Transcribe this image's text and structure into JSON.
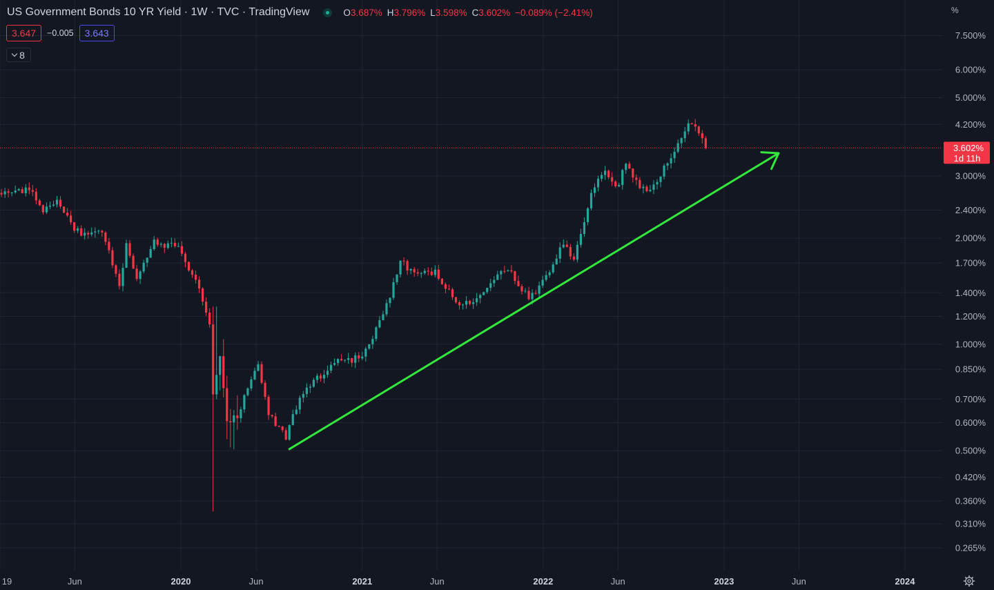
{
  "header": {
    "symbol_title": "US Government Bonds 10 YR Yield · 1W · TVC · TradingView",
    "ohlc": [
      {
        "key": "O",
        "value": "3.687%"
      },
      {
        "key": "H",
        "value": "3.796%"
      },
      {
        "key": "L",
        "value": "3.598%"
      },
      {
        "key": "C",
        "value": "3.602%"
      }
    ],
    "change": "−0.089% (−2.41%)",
    "sell_price": "3.647",
    "spread": "−0.005",
    "buy_price": "3.643",
    "indicators_count": "8"
  },
  "colors": {
    "background": "#131722",
    "grid": "#232632",
    "up": "#26a69a",
    "down": "#f23645",
    "trendline": "#32e83c",
    "buy_border": "#4c4cf0"
  },
  "chart_data": {
    "type": "candlestick",
    "title": "US Government Bonds 10 YR Yield · 1W · TVC · TradingView",
    "y_scale": "log",
    "y_unit": "%",
    "ylim": [
      0.24,
      9.3
    ],
    "y_ticks": [
      "7.500%",
      "6.000%",
      "5.000%",
      "4.200%",
      "3.000%",
      "2.400%",
      "2.000%",
      "1.700%",
      "1.400%",
      "1.200%",
      "1.000%",
      "0.850%",
      "0.700%",
      "0.600%",
      "0.500%",
      "0.420%",
      "0.360%",
      "0.310%",
      "0.265%"
    ],
    "x_ticks": [
      "19",
      "Jun",
      "2020",
      "Jun",
      "2021",
      "Jun",
      "2022",
      "Jun",
      "2023",
      "Jun",
      "2024"
    ],
    "bold_x_ticks": [
      "2020",
      "2021",
      "2022",
      "2023",
      "2024"
    ],
    "x_range": [
      "2019-01",
      "2024-07"
    ],
    "candles_start": "2019-01-04",
    "candles_end": "2022-11-25",
    "last_price_label": "3.602%",
    "countdown_label": "1d 11h",
    "unit_label": "%",
    "price_path": [
      {
        "date": "2019-01-04",
        "value": 2.66
      },
      {
        "date": "2019-03-01",
        "value": 2.73
      },
      {
        "date": "2019-03-29",
        "value": 2.41
      },
      {
        "date": "2019-04-26",
        "value": 2.56
      },
      {
        "date": "2019-05-31",
        "value": 2.13
      },
      {
        "date": "2019-06-28",
        "value": 2.02
      },
      {
        "date": "2019-07-26",
        "value": 2.07
      },
      {
        "date": "2019-08-30",
        "value": 1.5
      },
      {
        "date": "2019-09-13",
        "value": 1.9
      },
      {
        "date": "2019-10-04",
        "value": 1.53
      },
      {
        "date": "2019-11-08",
        "value": 1.94
      },
      {
        "date": "2019-12-27",
        "value": 1.88
      },
      {
        "date": "2020-01-31",
        "value": 1.51
      },
      {
        "date": "2020-02-28",
        "value": 1.15
      },
      {
        "date": "2020-03-06",
        "value": 0.71
      },
      {
        "date": "2020-03-20",
        "value": 0.92
      },
      {
        "date": "2020-04-03",
        "value": 0.6
      },
      {
        "date": "2020-04-24",
        "value": 0.63
      },
      {
        "date": "2020-06-05",
        "value": 0.89
      },
      {
        "date": "2020-06-26",
        "value": 0.64
      },
      {
        "date": "2020-07-31",
        "value": 0.54
      },
      {
        "date": "2020-08-28",
        "value": 0.72
      },
      {
        "date": "2020-10-30",
        "value": 0.87
      },
      {
        "date": "2020-11-13",
        "value": 0.89
      },
      {
        "date": "2020-12-31",
        "value": 0.92
      },
      {
        "date": "2021-02-12",
        "value": 1.2
      },
      {
        "date": "2021-03-19",
        "value": 1.72
      },
      {
        "date": "2021-04-16",
        "value": 1.58
      },
      {
        "date": "2021-05-28",
        "value": 1.59
      },
      {
        "date": "2021-07-16",
        "value": 1.29
      },
      {
        "date": "2021-08-06",
        "value": 1.3
      },
      {
        "date": "2021-10-22",
        "value": 1.65
      },
      {
        "date": "2021-12-03",
        "value": 1.34
      },
      {
        "date": "2021-12-31",
        "value": 1.51
      },
      {
        "date": "2022-02-11",
        "value": 1.93
      },
      {
        "date": "2022-03-04",
        "value": 1.73
      },
      {
        "date": "2022-04-08",
        "value": 2.72
      },
      {
        "date": "2022-05-06",
        "value": 3.13
      },
      {
        "date": "2022-05-27",
        "value": 2.74
      },
      {
        "date": "2022-06-17",
        "value": 3.23
      },
      {
        "date": "2022-07-29",
        "value": 2.65
      },
      {
        "date": "2022-08-26",
        "value": 3.04
      },
      {
        "date": "2022-10-21",
        "value": 4.21
      },
      {
        "date": "2022-11-04",
        "value": 4.16
      },
      {
        "date": "2022-11-25",
        "value": 3.602
      }
    ],
    "trendline": {
      "start": {
        "date": "2020-08-07",
        "value": 0.505
      },
      "end": {
        "date": "2023-04-21",
        "value": 3.48
      }
    }
  }
}
